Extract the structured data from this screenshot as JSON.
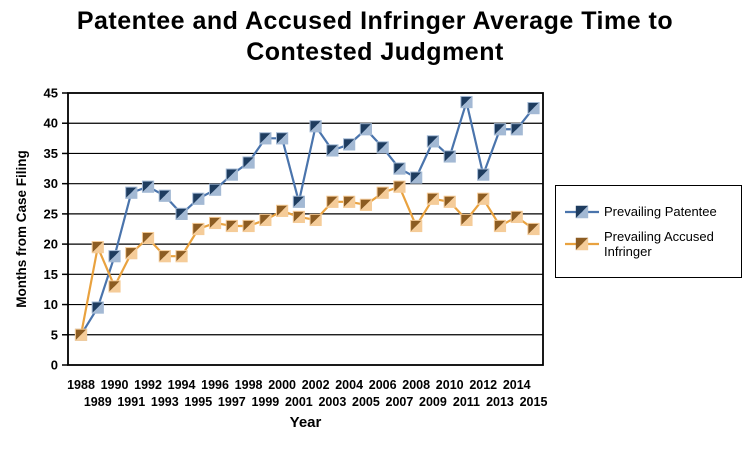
{
  "chart_data": {
    "type": "line",
    "title": "Patentee and Accused Infringer Average Time to Contested Judgment",
    "xlabel": "Year",
    "ylabel": "Months from Case Filing",
    "ylim": [
      0,
      45
    ],
    "yticks": [
      0,
      5,
      10,
      15,
      20,
      25,
      30,
      35,
      40,
      45
    ],
    "grid": true,
    "legend_position": "right",
    "x": [
      1988,
      1989,
      1990,
      1991,
      1992,
      1993,
      1994,
      1995,
      1996,
      1997,
      1998,
      1999,
      2000,
      2001,
      2002,
      2003,
      2004,
      2005,
      2006,
      2007,
      2008,
      2009,
      2010,
      2011,
      2012,
      2013,
      2014,
      2015
    ],
    "series": [
      {
        "name": "Prevailing Patentee",
        "line_color": "#4a74ac",
        "marker_dark": "#1e3c5f",
        "marker_light": "#a3b9d4",
        "values": [
          5,
          9.5,
          18,
          28.5,
          29.5,
          28,
          25,
          27.5,
          29,
          31.5,
          33.5,
          37.5,
          37.5,
          27,
          39.5,
          35.5,
          36.5,
          39,
          36,
          32.5,
          31,
          37,
          34.5,
          43.5,
          31.5,
          39,
          39,
          42.5
        ]
      },
      {
        "name": "Prevailing Accused Infringer",
        "line_color": "#e9a23f",
        "marker_dark": "#8c5c22",
        "marker_light": "#f5cc99",
        "values": [
          5,
          19.5,
          13,
          18.5,
          21,
          18,
          18,
          22.5,
          23.5,
          23,
          23,
          24,
          25.5,
          24.5,
          24,
          27,
          27,
          26.5,
          28.5,
          29.5,
          23,
          27.5,
          27,
          24,
          27.5,
          23,
          24.5,
          22.5
        ]
      }
    ],
    "axis_color": "#000000",
    "grid_color": "#000000",
    "background": "#ffffff"
  }
}
